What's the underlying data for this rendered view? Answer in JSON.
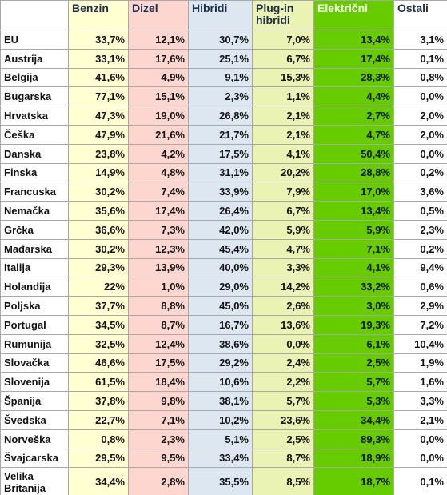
{
  "table": {
    "headers": [
      "Benzin",
      "Dizel",
      "Hibridi",
      "Plug-in hibridi",
      "Električni",
      "Ostali"
    ],
    "rows": [
      [
        "EU",
        "33,7%",
        "12,1%",
        "30,7%",
        "7,0%",
        "13,4%",
        "3,1%"
      ],
      [
        "Austrija",
        "33,1%",
        "17,6%",
        "25,1%",
        "6,7%",
        "17,4%",
        "0,1%"
      ],
      [
        "Belgija",
        "41,6%",
        "4,9%",
        "9,1%",
        "15,3%",
        "28,3%",
        "0,8%"
      ],
      [
        "Bugarska",
        "77,1%",
        "15,1%",
        "2,3%",
        "1,1%",
        "4,4%",
        "0,0%"
      ],
      [
        "Hrvatska",
        "47,3%",
        "19,0%",
        "26,8%",
        "2,1%",
        "2,7%",
        "2,0%"
      ],
      [
        "Češka",
        "47,9%",
        "21,6%",
        "21,7%",
        "2,1%",
        "4,7%",
        "2,0%"
      ],
      [
        "Danska",
        "23,8%",
        "4,2%",
        "17,5%",
        "4,1%",
        "50,4%",
        "0,0%"
      ],
      [
        "Finska",
        "14,9%",
        "4,8%",
        "31,1%",
        "20,2%",
        "28,8%",
        "0,2%"
      ],
      [
        "Francuska",
        "30,2%",
        "7,4%",
        "33,9%",
        "7,9%",
        "17,0%",
        "3,6%"
      ],
      [
        "Nemačka",
        "35,6%",
        "17,4%",
        "26,4%",
        "6,7%",
        "13,4%",
        "0,5%"
      ],
      [
        "Grčka",
        "36,6%",
        "7,3%",
        "42,0%",
        "5,9%",
        "5,9%",
        "2,3%"
      ],
      [
        "Mađarska",
        "30,2%",
        "12,3%",
        "45,4%",
        "4,7%",
        "7,1%",
        "0,2%"
      ],
      [
        "Italija",
        "29,3%",
        "13,9%",
        "40,0%",
        "3,3%",
        "4,1%",
        "9,4%"
      ],
      [
        "Holandija",
        "22%",
        "1,0%",
        "29,0%",
        "14,2%",
        "33,2%",
        "0,6%"
      ],
      [
        "Poljska",
        "37,7%",
        "8,8%",
        "45,0%",
        "2,6%",
        "3,0%",
        "2,9%"
      ],
      [
        "Portugal",
        "34,5%",
        "8,7%",
        "16,7%",
        "13,6%",
        "19,3%",
        "7,2%"
      ],
      [
        "Rumunija",
        "32,5%",
        "12,4%",
        "38,6%",
        "0,0%",
        "6,1%",
        "10,4%"
      ],
      [
        "Slovačka",
        "46,6%",
        "17,5%",
        "29,2%",
        "2,4%",
        "2,5%",
        "1,9%"
      ],
      [
        "Slovenija",
        "61,5%",
        "18,4%",
        "10,6%",
        "2,2%",
        "5,7%",
        "1,6%"
      ],
      [
        "Španija",
        "37,8%",
        "9,8%",
        "38,1%",
        "5,7%",
        "5,3%",
        "3,3%"
      ],
      [
        "Švedska",
        "22,7%",
        "7,1%",
        "10,2%",
        "23,6%",
        "34,4%",
        "2,1%"
      ],
      [
        "Norveška",
        "0,8%",
        "2,3%",
        "5,1%",
        "2,5%",
        "89,3%",
        "0,0%"
      ],
      [
        "Švajcarska",
        "29,5%",
        "9,5%",
        "33,4%",
        "8,7%",
        "18,9%",
        "0,0%"
      ],
      [
        "Velika Britanija",
        "34,4%",
        "2,8%",
        "35,5%",
        "8,5%",
        "18,7%",
        "0,1%"
      ]
    ]
  }
}
